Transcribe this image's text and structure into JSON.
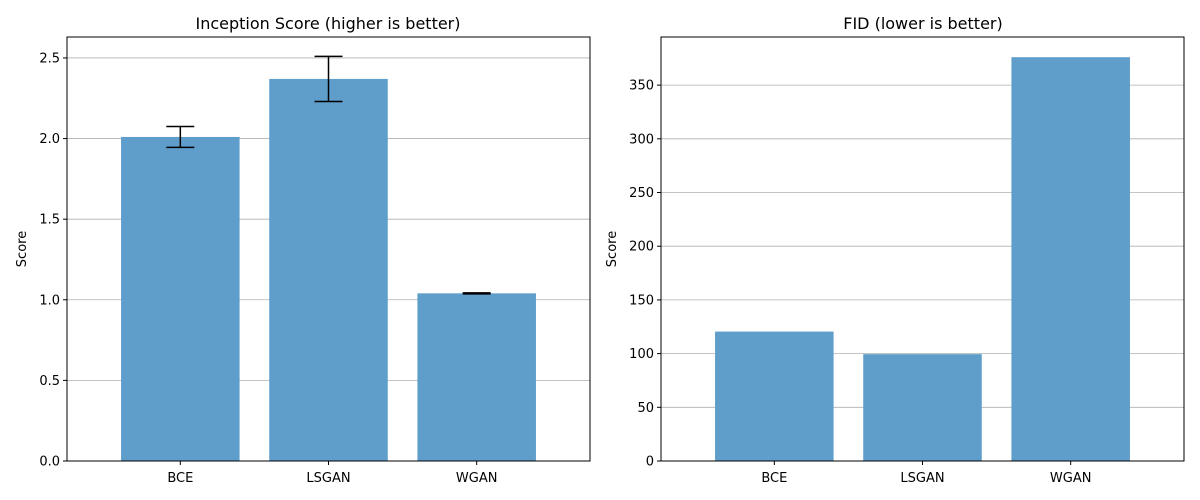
{
  "chart_data": [
    {
      "type": "bar",
      "title": "Inception Score (higher is better)",
      "xlabel": "",
      "ylabel": "Score",
      "categories": [
        "BCE",
        "LSGAN",
        "WGAN"
      ],
      "values": [
        2.01,
        2.37,
        1.04
      ],
      "error": [
        0.065,
        0.14,
        0.003
      ],
      "ylim": [
        0,
        2.63
      ],
      "yticks": [
        0.0,
        0.5,
        1.0,
        1.5,
        2.0,
        2.5
      ],
      "ytick_labels": [
        "0.0",
        "0.5",
        "1.0",
        "1.5",
        "2.0",
        "2.5"
      ],
      "grid": "y",
      "bar_color": "#5f9ecb"
    },
    {
      "type": "bar",
      "title": "FID (lower is better)",
      "xlabel": "",
      "ylabel": "Score",
      "categories": [
        "BCE",
        "LSGAN",
        "WGAN"
      ],
      "values": [
        120.5,
        99.5,
        376
      ],
      "ylim": [
        0,
        394.8
      ],
      "yticks": [
        0,
        50,
        100,
        150,
        200,
        250,
        300,
        350
      ],
      "ytick_labels": [
        "0",
        "50",
        "100",
        "150",
        "200",
        "250",
        "300",
        "350"
      ],
      "grid": "y",
      "bar_color": "#5f9ecb"
    }
  ]
}
